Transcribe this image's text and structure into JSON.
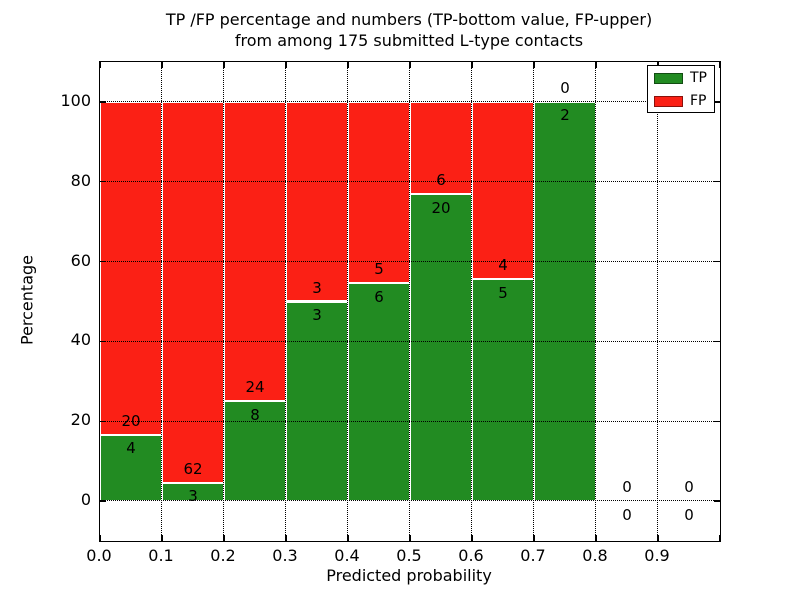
{
  "figure": {
    "kind": "matplotlib-style stacked bar figure"
  },
  "chart_data": {
    "type": "bar",
    "stacked": true,
    "normalized_to_percent": true,
    "title": "TP /FP percentage and numbers (TP-bottom value, FP-upper)\nfrom among 175 submitted L-type contacts",
    "title_lines": [
      "TP /FP percentage and numbers (TP-bottom value, FP-upper)",
      "from among 175 submitted L-type contacts"
    ],
    "xlabel": "Predicted probability",
    "ylabel": "Percentage",
    "xlim": [
      0.0,
      1.0
    ],
    "ylim": [
      -10,
      110
    ],
    "xticks": [
      "0.0",
      "0.1",
      "0.2",
      "0.3",
      "0.4",
      "0.5",
      "0.6",
      "0.7",
      "0.8",
      "0.9"
    ],
    "yticks": [
      0,
      20,
      40,
      60,
      80,
      100
    ],
    "grid": true,
    "grid_style": "dotted-black-over-bars",
    "total_contacts": 175,
    "bins": [
      {
        "range": [
          0.0,
          0.1
        ],
        "tp": 4,
        "fp": 20
      },
      {
        "range": [
          0.1,
          0.2
        ],
        "tp": 3,
        "fp": 62
      },
      {
        "range": [
          0.2,
          0.3
        ],
        "tp": 8,
        "fp": 24
      },
      {
        "range": [
          0.3,
          0.4
        ],
        "tp": 3,
        "fp": 3
      },
      {
        "range": [
          0.4,
          0.5
        ],
        "tp": 6,
        "fp": 5
      },
      {
        "range": [
          0.5,
          0.6
        ],
        "tp": 20,
        "fp": 6
      },
      {
        "range": [
          0.6,
          0.7
        ],
        "tp": 5,
        "fp": 4
      },
      {
        "range": [
          0.7,
          0.8
        ],
        "tp": 2,
        "fp": 0
      },
      {
        "range": [
          0.8,
          0.9
        ],
        "tp": 0,
        "fp": 0
      },
      {
        "range": [
          0.9,
          1.0
        ],
        "tp": 0,
        "fp": 0
      }
    ],
    "legend": {
      "position": "upper right",
      "entries": [
        {
          "label": "TP",
          "color": "#228b22"
        },
        {
          "label": "FP",
          "color": "#fb2015"
        }
      ]
    },
    "colors": {
      "tp": "#228b22",
      "fp": "#fb2015",
      "grid": "#000000",
      "bar_edge": "#ffffff",
      "frame": "#000000",
      "background": "#ffffff"
    }
  }
}
